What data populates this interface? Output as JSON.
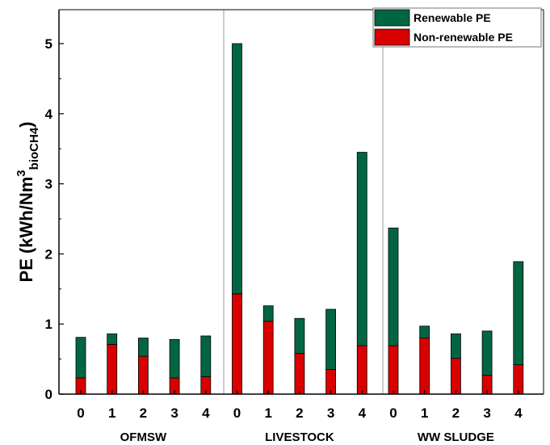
{
  "chart_data": {
    "type": "bar",
    "stacked": true,
    "title": "",
    "xlabel": "",
    "ylabel": {
      "main": "PE (kWh/Nm",
      "superscript": "3",
      "subscript": "bioCH4",
      "close": ")"
    },
    "ylim": [
      0,
      5.5
    ],
    "yticks": [
      "0",
      "1",
      "2",
      "3",
      "4",
      "5"
    ],
    "groups": [
      {
        "name": "OFMSW",
        "categories": [
          "0",
          "1",
          "2",
          "3",
          "4"
        ]
      },
      {
        "name": "LIVESTOCK",
        "categories": [
          "0",
          "1",
          "2",
          "3",
          "4"
        ]
      },
      {
        "name": "WW SLUDGE",
        "categories": [
          "0",
          "1",
          "2",
          "3",
          "4"
        ]
      }
    ],
    "series": [
      {
        "name": "Non-renewable PE",
        "color": "#d90000",
        "values": [
          0.23,
          0.71,
          0.54,
          0.23,
          0.25,
          1.43,
          1.04,
          0.58,
          0.35,
          0.69,
          0.69,
          0.8,
          0.51,
          0.27,
          0.42
        ]
      },
      {
        "name": "Renewable PE",
        "color": "#006642",
        "values": [
          0.58,
          0.15,
          0.26,
          0.55,
          0.58,
          3.57,
          0.22,
          0.5,
          0.86,
          2.76,
          1.68,
          0.17,
          0.35,
          0.63,
          1.47
        ]
      }
    ],
    "legend": {
      "position": "top-right",
      "entries": [
        "Renewable PE",
        "Non-renewable PE"
      ]
    },
    "grid": false
  }
}
